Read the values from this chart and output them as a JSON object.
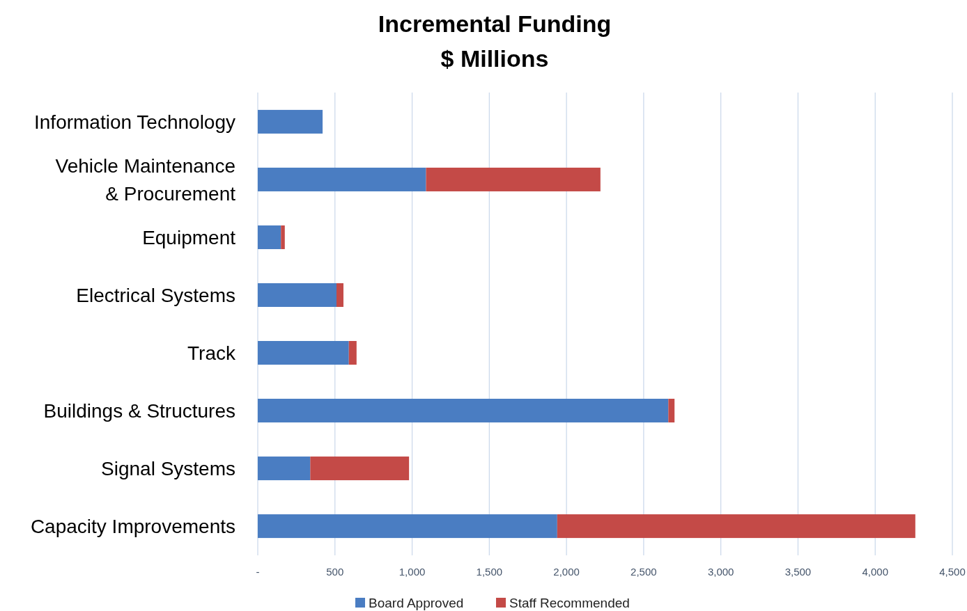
{
  "chart_data": {
    "type": "bar",
    "orientation": "horizontal",
    "stacked": true,
    "title": "Incremental Funding\n$ Millions",
    "categories": [
      "Information Technology",
      "Vehicle Maintenance & Procurement",
      "Equipment",
      "Electrical Systems",
      "Track",
      "Buildings & Structures",
      "Signal Systems",
      "Capacity Improvements"
    ],
    "series": [
      {
        "name": "Board Approved",
        "color": "#4a7dc2",
        "values": [
          420,
          1090,
          150,
          510,
          590,
          2660,
          340,
          1940
        ]
      },
      {
        "name": "Staff Recommended",
        "color": "#c44a47",
        "values": [
          null,
          1130,
          25,
          45,
          50,
          40,
          640,
          2320
        ]
      }
    ],
    "xlim": [
      0,
      4500
    ],
    "xticks": [
      {
        "value": 0,
        "label": "-"
      },
      500,
      {
        "value": 1000,
        "label": "1,000"
      },
      {
        "value": 1500,
        "label": "1,500"
      },
      {
        "value": 2000,
        "label": "2,000"
      },
      {
        "value": 2500,
        "label": "2,500"
      },
      {
        "value": 3000,
        "label": "3,000"
      },
      {
        "value": 3500,
        "label": "3,500"
      },
      {
        "value": 4000,
        "label": "4,000"
      },
      {
        "value": 4500,
        "label": "4,500"
      }
    ],
    "grid": "x",
    "legend": "bottom"
  }
}
